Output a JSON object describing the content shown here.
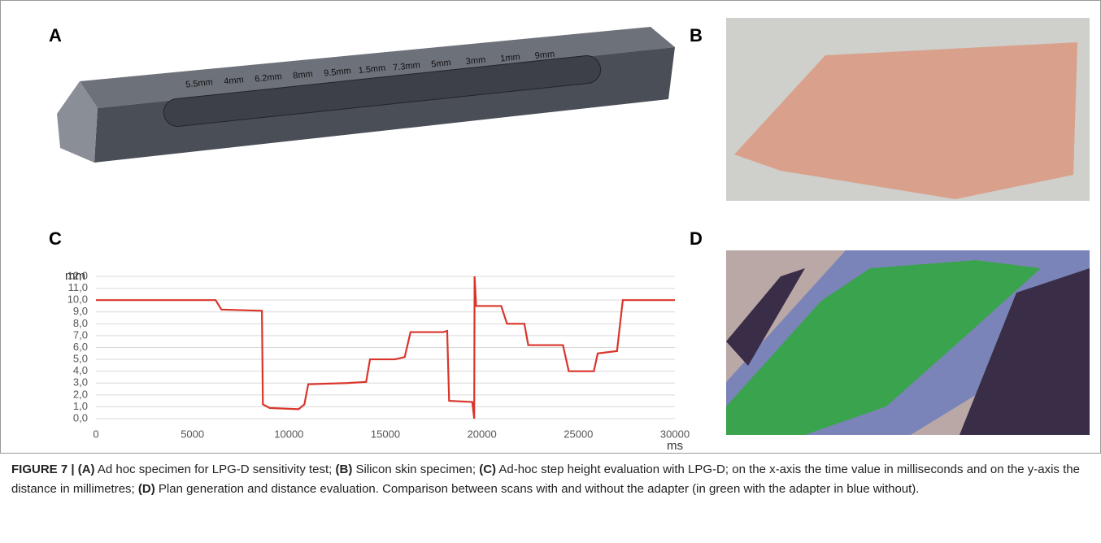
{
  "panels": [
    {
      "label": "A",
      "annotations": [
        "5.5mm",
        "4mm",
        "6.2mm",
        "8mm",
        "9.5mm",
        "1.5mm",
        "7.3mm",
        "5mm",
        "3mm",
        "1mm",
        "9mm"
      ]
    },
    {
      "label": "B"
    },
    {
      "label": "C"
    },
    {
      "label": "D"
    }
  ],
  "chart_data": {
    "type": "line",
    "color": "#d9352b",
    "y_label": "mm",
    "x_label": "ms",
    "x": [
      0,
      4000,
      6200,
      6500,
      8600,
      8650,
      9000,
      10500,
      10800,
      11000,
      13000,
      14000,
      14200,
      15500,
      16000,
      16300,
      18000,
      18200,
      18300,
      19500,
      19600,
      19620,
      19700,
      21000,
      21300,
      22200,
      22400,
      24200,
      24500,
      25800,
      26000,
      27000,
      27300,
      30000
    ],
    "values": [
      10.0,
      10.0,
      10.0,
      9.2,
      9.1,
      1.2,
      0.9,
      0.8,
      1.2,
      2.9,
      3.0,
      3.1,
      5.0,
      5.0,
      5.2,
      7.3,
      7.3,
      7.4,
      1.5,
      1.4,
      0.0,
      12.0,
      9.5,
      9.5,
      8.0,
      8.0,
      6.2,
      6.2,
      4.0,
      4.0,
      5.5,
      5.7,
      10.0,
      10.0
    ],
    "xlim": [
      0,
      30000
    ],
    "xticks": [
      0,
      5000,
      10000,
      15000,
      20000,
      25000,
      30000
    ],
    "ylim": [
      0,
      12
    ],
    "yticks": [
      {
        "value": 0,
        "label": "0,0"
      },
      {
        "value": 1,
        "label": "1,0"
      },
      {
        "value": 2,
        "label": "2,0"
      },
      {
        "value": 3,
        "label": "3,0"
      },
      {
        "value": 4,
        "label": "4,0"
      },
      {
        "value": 5,
        "label": "5,0"
      },
      {
        "value": 6,
        "label": "6,0"
      },
      {
        "value": 7,
        "label": "7,0"
      },
      {
        "value": 8,
        "label": "8,0"
      },
      {
        "value": 9,
        "label": "9,0"
      },
      {
        "value": 10,
        "label": "10,0"
      },
      {
        "value": 11,
        "label": "11,0"
      },
      {
        "value": 12,
        "label": "12,0"
      }
    ],
    "grid": true
  },
  "caption": [
    {
      "text": "FIGURE 7 | (A)",
      "bold": true
    },
    {
      "text": " Ad hoc specimen for LPG-D sensitivity test; ",
      "bold": false
    },
    {
      "text": "(B)",
      "bold": true
    },
    {
      "text": " Silicon skin specimen; ",
      "bold": false
    },
    {
      "text": "(C)",
      "bold": true
    },
    {
      "text": " Ad-hoc step height evaluation with LPG-D; on the x-axis the time value in milliseconds and on the y-axis the distance in millimetres; ",
      "bold": false
    },
    {
      "text": "(D)",
      "bold": true
    },
    {
      "text": " Plan generation and distance evaluation. Comparison between scans with and without the adapter (in green with the adapter in blue without).",
      "bold": false
    }
  ]
}
